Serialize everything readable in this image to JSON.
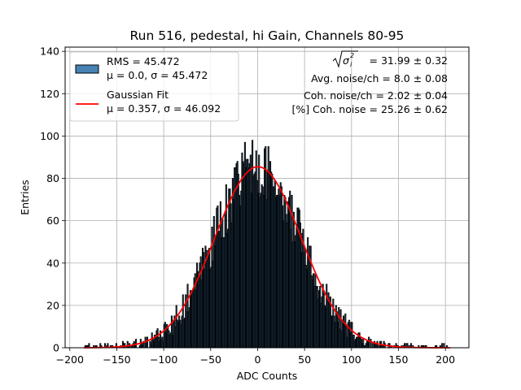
{
  "chart_data": {
    "type": "bar",
    "title": "Run 516, pedestal, hi Gain, Channels 80-95",
    "xlabel": "ADC Counts",
    "ylabel": "Entries",
    "xlim": [
      -205,
      225
    ],
    "ylim": [
      0,
      142
    ],
    "xticks": [
      -200,
      -150,
      -100,
      -50,
      0,
      50,
      100,
      150,
      200
    ],
    "yticks": [
      0,
      20,
      40,
      60,
      80,
      100,
      120,
      140
    ],
    "grid": true,
    "legend_position": "top-left",
    "legend": [
      {
        "kind": "patch",
        "line1": "RMS = 45.472",
        "line2": "μ = 0.0, σ = 45.472",
        "color": "#4682b4"
      },
      {
        "kind": "line",
        "line1": "Gaussian Fit",
        "line2": "μ = 0.357, σ = 46.092",
        "color": "#ff0000"
      }
    ],
    "annotations": [
      {
        "prefix": "√σ²",
        "text": " = 31.99 ± 0.32"
      },
      {
        "text": "Avg. noise/ch = 8.0 ± 0.08"
      },
      {
        "text": "Coh. noise/ch = 2.02 ± 0.04"
      },
      {
        "text": "[%] Coh. noise = 25.26 ± 0.62"
      }
    ],
    "series": [
      {
        "name": "RMS = 45.472",
        "style": "histogram",
        "bin_width": 1,
        "bin_range": [
          -185,
          205
        ],
        "gaussian_envelope": {
          "mu": 0.0,
          "sigma": 45.472,
          "peak": 86
        }
      },
      {
        "name": "Gaussian Fit",
        "style": "line",
        "mu": 0.357,
        "sigma": 46.092,
        "amplitude": 85.5
      }
    ],
    "colors": {
      "bar": "#4682b4",
      "bar_edge": "#000000",
      "fit": "#ff0000",
      "grid": "#b0b0b0"
    }
  }
}
